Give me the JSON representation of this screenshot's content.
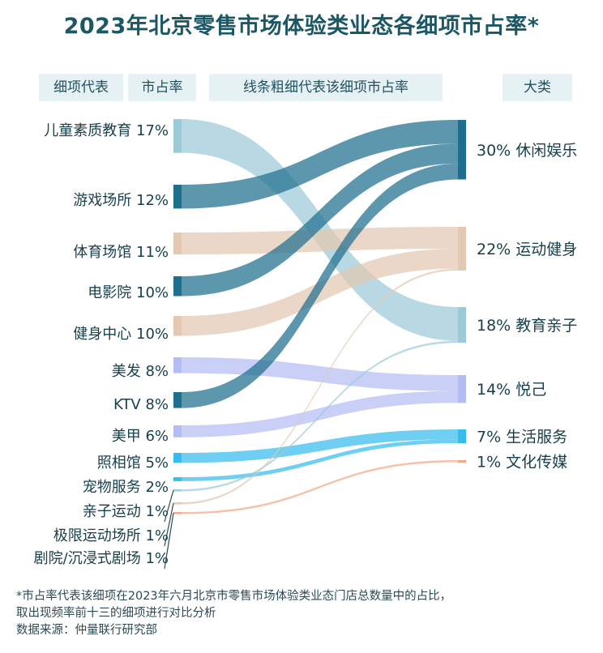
{
  "title": "2023年北京零售市场体验类业态各细项市占率*",
  "headers": {
    "item": "细项代表",
    "share": "市占率",
    "width_note": "线条粗细代表该细项市占率",
    "category": "大类"
  },
  "footnote": {
    "line1": "*市占率代表该细项在2023年六月北京市零售市场体验类业态门店总数量中的占比，",
    "line2": "取出现频率前十三的细项进行对比分析",
    "source": "数据来源：仲量联行研究部"
  },
  "colors": {
    "休闲娱乐": "#1e6f8f",
    "运动健身": "#e3c8b2",
    "教育亲子": "#9ccad8",
    "悦己": "#b4bdf2",
    "生活服务": "#36bdee",
    "文化传媒": "#f4a987"
  },
  "chart_data": {
    "type": "sankey",
    "value_unit": "%",
    "sources": [
      {
        "name": "儿童素质教育",
        "value": 17,
        "label": "17%",
        "target": "教育亲子"
      },
      {
        "name": "游戏场所",
        "value": 12,
        "label": "12%",
        "target": "休闲娱乐"
      },
      {
        "name": "体育场馆",
        "value": 11,
        "label": "11%",
        "target": "运动健身"
      },
      {
        "name": "电影院",
        "value": 10,
        "label": "10%",
        "target": "休闲娱乐"
      },
      {
        "name": "健身中心",
        "value": 10,
        "label": "10%",
        "target": "运动健身"
      },
      {
        "name": "美发",
        "value": 8,
        "label": "8%",
        "target": "悦己"
      },
      {
        "name": "KTV",
        "value": 8,
        "label": "8%",
        "target": "休闲娱乐"
      },
      {
        "name": "美甲",
        "value": 6,
        "label": "6%",
        "target": "悦己"
      },
      {
        "name": "照相馆",
        "value": 5,
        "label": "5%",
        "target": "生活服务"
      },
      {
        "name": "宠物服务",
        "value": 2,
        "label": "2%",
        "target": "生活服务"
      },
      {
        "name": "亲子运动",
        "value": 1,
        "label": "1%",
        "target": "教育亲子"
      },
      {
        "name": "极限运动场所",
        "value": 1,
        "label": "1%",
        "target": "运动健身"
      },
      {
        "name": "剧院/沉浸式剧场",
        "value": 1,
        "label": "1%",
        "target": "文化传媒"
      }
    ],
    "targets": [
      {
        "name": "休闲娱乐",
        "value": 30,
        "label": "30%"
      },
      {
        "name": "运动健身",
        "value": 22,
        "label": "22%"
      },
      {
        "name": "教育亲子",
        "value": 18,
        "label": "18%"
      },
      {
        "name": "悦己",
        "value": 14,
        "label": "14%"
      },
      {
        "name": "生活服务",
        "value": 7,
        "label": "7%"
      },
      {
        "name": "文化传媒",
        "value": 1,
        "label": "1%"
      }
    ]
  }
}
